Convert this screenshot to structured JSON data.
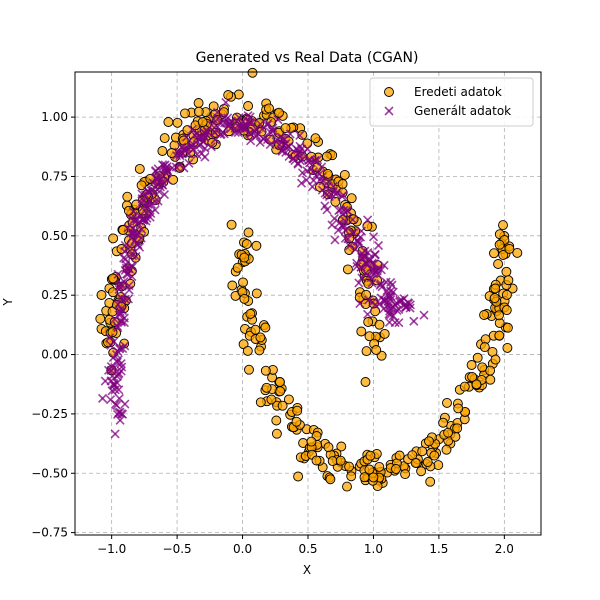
{
  "chart_data": {
    "type": "scatter",
    "title": "Generated vs Real Data (CGAN)",
    "xlabel": "X",
    "ylabel": "Y",
    "xlim": [
      -1.28,
      2.28
    ],
    "ylim": [
      -0.76,
      1.19
    ],
    "xticks": [
      -1.0,
      -0.5,
      0.0,
      0.5,
      1.0,
      1.5,
      2.0
    ],
    "xtick_labels": [
      "−1.0",
      "−0.5",
      "0.0",
      "0.5",
      "1.0",
      "1.5",
      "2.0"
    ],
    "yticks": [
      -0.75,
      -0.5,
      -0.25,
      0.0,
      0.25,
      0.5,
      0.75,
      1.0
    ],
    "ytick_labels": [
      "−0.75",
      "−0.50",
      "−0.25",
      "0.00",
      "0.25",
      "0.50",
      "0.75",
      "1.00"
    ],
    "grid": true,
    "legend_position": "top-right",
    "series": [
      {
        "name": "Eredeti adatok",
        "marker": "circle",
        "color": "#ffa500",
        "edge_color": "#000000",
        "description_points": [
          [
            -1.0,
            0.0
          ],
          [
            -0.97,
            0.25
          ],
          [
            -0.87,
            0.5
          ],
          [
            -0.71,
            0.71
          ],
          [
            -0.5,
            0.87
          ],
          [
            -0.26,
            0.97
          ],
          [
            0.0,
            1.0
          ],
          [
            0.26,
            0.97
          ],
          [
            0.5,
            0.87
          ],
          [
            0.71,
            0.71
          ],
          [
            0.87,
            0.5
          ],
          [
            0.97,
            0.25
          ],
          [
            1.0,
            0.0
          ],
          [
            0.0,
            0.5
          ],
          [
            0.03,
            0.25
          ],
          [
            0.13,
            0.0
          ],
          [
            0.29,
            -0.21
          ],
          [
            0.5,
            -0.37
          ],
          [
            0.74,
            -0.47
          ],
          [
            1.0,
            -0.5
          ],
          [
            1.26,
            -0.47
          ],
          [
            1.5,
            -0.37
          ],
          [
            1.71,
            -0.21
          ],
          [
            1.87,
            0.0
          ],
          [
            1.97,
            0.25
          ],
          [
            2.0,
            0.5
          ]
        ]
      },
      {
        "name": "Generált adatok",
        "marker": "x",
        "color": "#800080",
        "description_points": [
          [
            -0.93,
            -0.27
          ],
          [
            -0.98,
            -0.1
          ],
          [
            -0.95,
            0.1
          ],
          [
            -0.92,
            0.25
          ],
          [
            -0.83,
            0.5
          ],
          [
            -0.68,
            0.71
          ],
          [
            -0.45,
            0.85
          ],
          [
            -0.2,
            0.95
          ],
          [
            0.0,
            0.97
          ],
          [
            0.2,
            0.93
          ],
          [
            0.45,
            0.84
          ],
          [
            0.65,
            0.7
          ],
          [
            0.82,
            0.53
          ],
          [
            0.97,
            0.35
          ],
          [
            1.12,
            0.2
          ],
          [
            1.28,
            0.2
          ]
        ]
      }
    ]
  }
}
